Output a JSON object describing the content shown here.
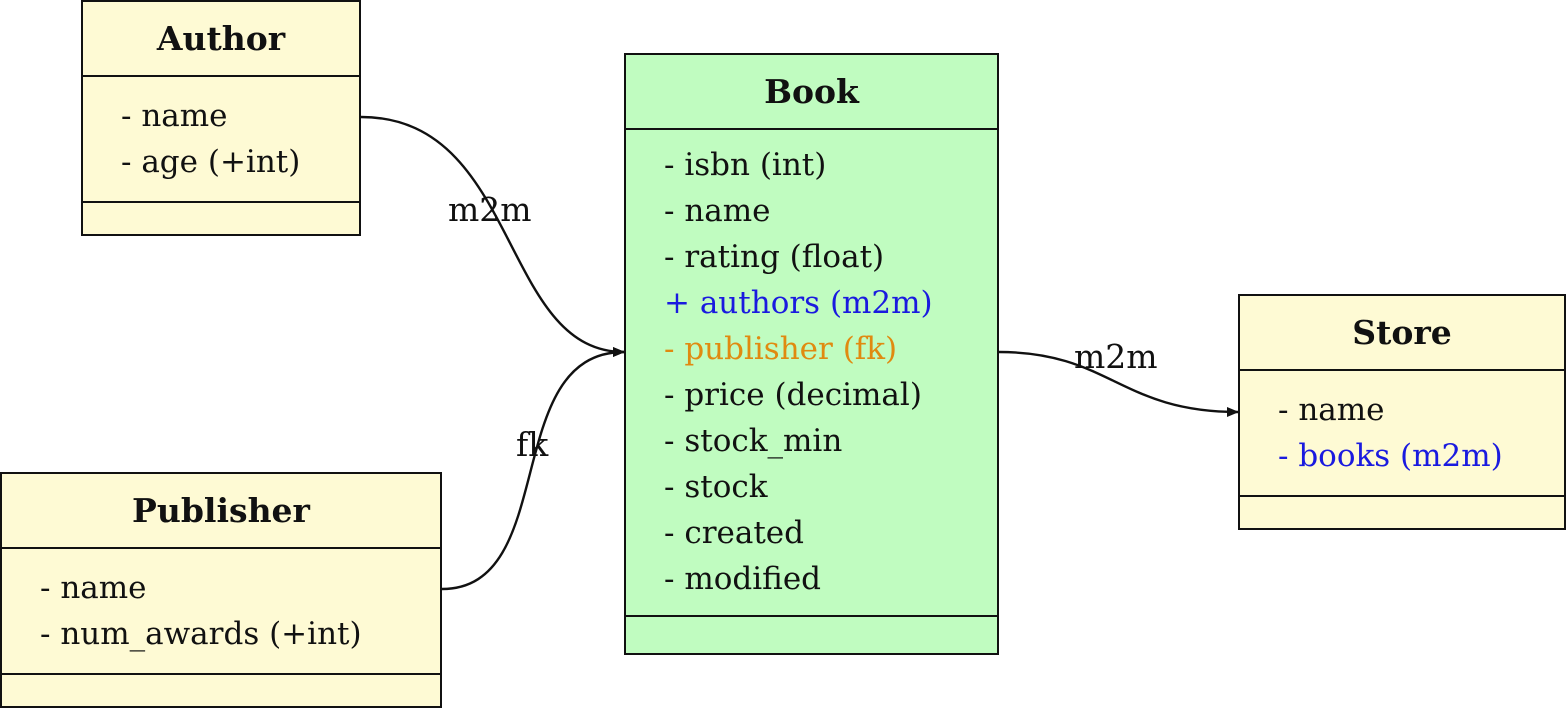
{
  "colors": {
    "class_fill": "#fefad4",
    "book_fill": "#c0fcc0",
    "m2m_field": "#1a1adf",
    "fk_field": "#e08a10",
    "default_field": "#111111",
    "stroke": "#111111"
  },
  "classes": {
    "author": {
      "title": "Author",
      "fields": [
        {
          "text": "- name",
          "kind": "default"
        },
        {
          "text": "- age (+int)",
          "kind": "default"
        }
      ]
    },
    "book": {
      "title": "Book",
      "fields": [
        {
          "text": "- isbn (int)",
          "kind": "default"
        },
        {
          "text": "- name",
          "kind": "default"
        },
        {
          "text": "- rating (float)",
          "kind": "default"
        },
        {
          "text": "+ authors (m2m)",
          "kind": "m2m"
        },
        {
          "text": "- publisher (fk)",
          "kind": "fk"
        },
        {
          "text": "- price (decimal)",
          "kind": "default"
        },
        {
          "text": "- stock_min",
          "kind": "default"
        },
        {
          "text": "- stock",
          "kind": "default"
        },
        {
          "text": "- created",
          "kind": "default"
        },
        {
          "text": "- modified",
          "kind": "default"
        }
      ]
    },
    "store": {
      "title": "Store",
      "fields": [
        {
          "text": "- name",
          "kind": "default"
        },
        {
          "text": "- books (m2m)",
          "kind": "m2m"
        }
      ]
    },
    "publisher": {
      "title": "Publisher",
      "fields": [
        {
          "text": "- name",
          "kind": "default"
        },
        {
          "text": "- num_awards (+int)",
          "kind": "default"
        }
      ]
    }
  },
  "relations": {
    "author_book": {
      "label": "m2m"
    },
    "publisher_book": {
      "label": "fk"
    },
    "book_store": {
      "label": "m2m"
    }
  }
}
